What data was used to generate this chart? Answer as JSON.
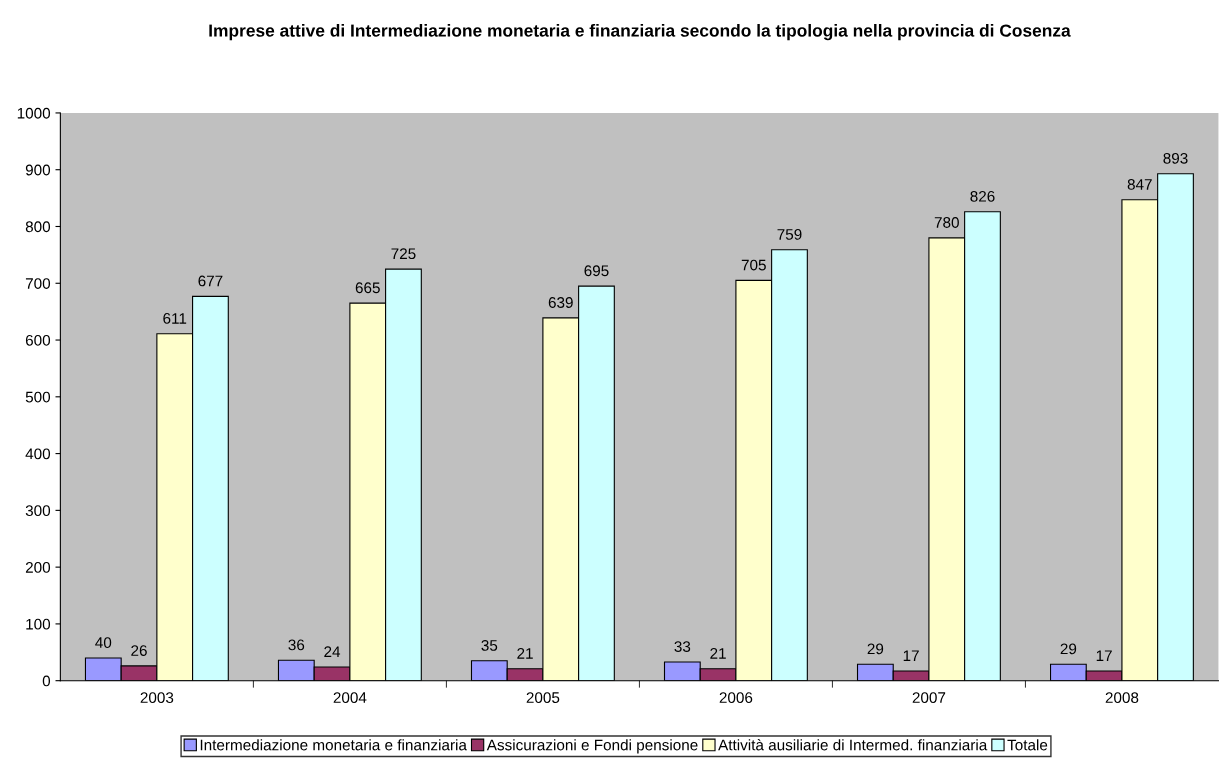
{
  "chart_data": {
    "type": "bar",
    "title": "Imprese attive di Intermediazione monetaria e finanziaria secondo la tipologia nella provincia di Cosenza",
    "categories": [
      "2003",
      "2004",
      "2005",
      "2006",
      "2007",
      "2008"
    ],
    "series": [
      {
        "name": "Intermediazione monetaria e finanziaria",
        "color": "#9999ff",
        "values": [
          40,
          36,
          35,
          33,
          29,
          29
        ]
      },
      {
        "name": "Assicurazioni e Fondi pensione",
        "color": "#993366",
        "values": [
          26,
          24,
          21,
          21,
          17,
          17
        ]
      },
      {
        "name": "Attività ausiliarie di Intermed. finanziaria",
        "color": "#ffffcc",
        "values": [
          611,
          665,
          639,
          705,
          780,
          847
        ]
      },
      {
        "name": "Totale",
        "color": "#ccffff",
        "values": [
          677,
          725,
          695,
          759,
          826,
          893
        ]
      }
    ],
    "ylim": [
      0,
      1000
    ],
    "yticks": [
      0,
      100,
      200,
      300,
      400,
      500,
      600,
      700,
      800,
      900,
      1000
    ],
    "data_labels": true,
    "grid": false,
    "legend": "bottom"
  }
}
